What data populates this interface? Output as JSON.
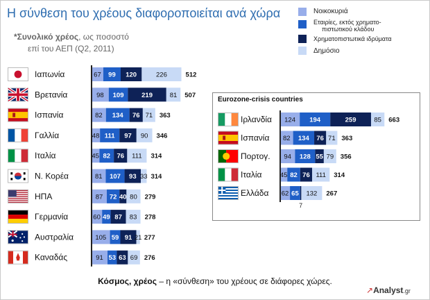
{
  "title": "Η σύνθεση του χρέους διαφοροποιείται ανά χώρα",
  "subtitle_line1_bold": "*Συνολικό χρέος",
  "subtitle_line1_rest": ", ως ποσοστό",
  "subtitle_line2": "επί του ΑΕΠ (Q2, 2011)",
  "legend": [
    {
      "label_lines": [
        "Νοικοκυριά"
      ],
      "color": "#98aeea"
    },
    {
      "label_lines": [
        "Εταιρίες, εκτός χρηματο-",
        "πιστωτικού κλάδου"
      ],
      "color": "#1f5fc7"
    },
    {
      "label_lines": [
        "Χρηματοπιστωτικά ιδρύματα"
      ],
      "color": "#0e2257"
    },
    {
      "label_lines": [
        "Δημόσιο"
      ],
      "color": "#c8daf6"
    }
  ],
  "caption_bold": "Κόσμος, χρέος",
  "caption_rest": " – η «σύνθεση» του χρέους σε διάφορες χώρες.",
  "logo_text": "Analyst",
  "logo_suffix": ".gr",
  "panel_title": "Eurozone-crisis countries",
  "chart_data": [
    {
      "type": "bar",
      "stacked": true,
      "orientation": "horizontal",
      "series_names": [
        "Νοικοκυριά",
        "Εταιρίες, εκτός χρηματο-πιστωτικού κλάδου",
        "Χρηματοπιστωτικά ιδρύματα",
        "Δημόσιο"
      ],
      "series_colors": [
        "#98aeea",
        "#1f5fc7",
        "#0e2257",
        "#c8daf6"
      ],
      "rows": [
        {
          "country": "Ιαπωνία",
          "flag": "japan",
          "values": [
            67,
            99,
            120,
            226
          ],
          "total": 512
        },
        {
          "country": "Βρετανία",
          "flag": "uk",
          "values": [
            98,
            109,
            219,
            81
          ],
          "total": 507
        },
        {
          "country": "Ισπανία",
          "flag": "spain",
          "values": [
            82,
            134,
            76,
            71
          ],
          "total": 363
        },
        {
          "country": "Γαλλία",
          "flag": "france",
          "values": [
            48,
            111,
            97,
            90
          ],
          "total": 346
        },
        {
          "country": "Ιταλία",
          "flag": "italy",
          "values": [
            45,
            82,
            76,
            111
          ],
          "total": 314
        },
        {
          "country": "Ν. Κορέα",
          "flag": "korea",
          "values": [
            81,
            107,
            93,
            33
          ],
          "total": 314
        },
        {
          "country": "ΗΠΑ",
          "flag": "usa",
          "values": [
            87,
            72,
            40,
            80
          ],
          "total": 279
        },
        {
          "country": "Γερμανία",
          "flag": "germany",
          "values": [
            60,
            49,
            87,
            83
          ],
          "total": 278
        },
        {
          "country": "Αυστραλία",
          "flag": "australia",
          "values": [
            105,
            59,
            91,
            21
          ],
          "total": 277
        },
        {
          "country": "Καναδάς",
          "flag": "canada",
          "values": [
            91,
            53,
            63,
            69
          ],
          "total": 276
        }
      ]
    },
    {
      "type": "bar",
      "stacked": true,
      "orientation": "horizontal",
      "title": "Eurozone-crisis countries",
      "series_names": [
        "Νοικοκυριά",
        "Εταιρίες, εκτός χρηματο-πιστωτικού κλάδου",
        "Χρηματοπιστωτικά ιδρύματα",
        "Δημόσιο"
      ],
      "series_colors": [
        "#98aeea",
        "#1f5fc7",
        "#0e2257",
        "#c8daf6"
      ],
      "rows": [
        {
          "country": "Ιρλανδία",
          "flag": "ireland",
          "values": [
            124,
            194,
            259,
            85
          ],
          "total": 663
        },
        {
          "country": "Ισπανία",
          "flag": "spain",
          "values": [
            82,
            134,
            76,
            71
          ],
          "total": 363
        },
        {
          "country": "Πορτογ.",
          "flag": "portugal",
          "values": [
            94,
            128,
            55,
            79
          ],
          "total": 356
        },
        {
          "country": "Ιταλία",
          "flag": "italy",
          "values": [
            45,
            82,
            76,
            111
          ],
          "total": 314
        },
        {
          "country": "Ελλάδα",
          "flag": "greece",
          "values": [
            62,
            65,
            7,
            132
          ],
          "total": 267
        }
      ]
    }
  ]
}
